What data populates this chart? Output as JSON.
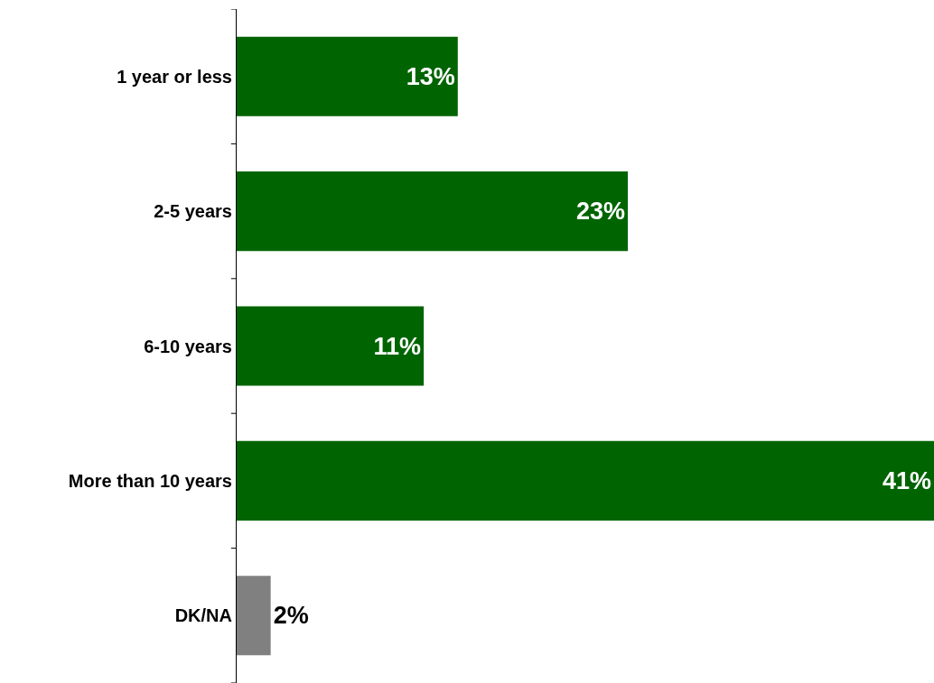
{
  "chart_data": {
    "type": "bar",
    "orientation": "horizontal",
    "categories": [
      "1 year or less",
      "2-5 years",
      "6-10 years",
      "More than 10 years",
      "DK/NA"
    ],
    "values": [
      13,
      23,
      11,
      41,
      2
    ],
    "colors": [
      "#006400",
      "#006400",
      "#006400",
      "#006400",
      "#808080"
    ],
    "value_labels": [
      "13%",
      "23%",
      "11%",
      "41%",
      "2%"
    ]
  }
}
